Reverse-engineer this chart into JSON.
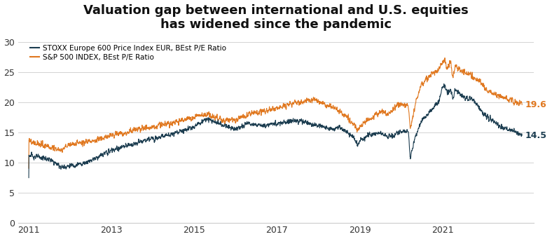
{
  "title": "Valuation gap between international and U.S. equities\nhas widened since the pandemic",
  "title_fontsize": 13,
  "legend_labels": [
    "STOXX Europe 600 Price Index EUR, BEst P/E Ratio",
    "S&P 500 INDEX, BEst P/E Ratio"
  ],
  "end_labels": [
    "14.5",
    "19.6"
  ],
  "yticks": [
    0,
    5,
    10,
    15,
    20,
    25,
    30
  ],
  "xtick_years": [
    2011,
    2013,
    2015,
    2017,
    2019,
    2021
  ],
  "ylim": [
    0,
    31
  ],
  "xlim_start": 2010.75,
  "xlim_end": 2023.2,
  "background_color": "#ffffff",
  "grid_color": "#cccccc",
  "stoxx_color": "#1c3d50",
  "sp500_color": "#e07820"
}
